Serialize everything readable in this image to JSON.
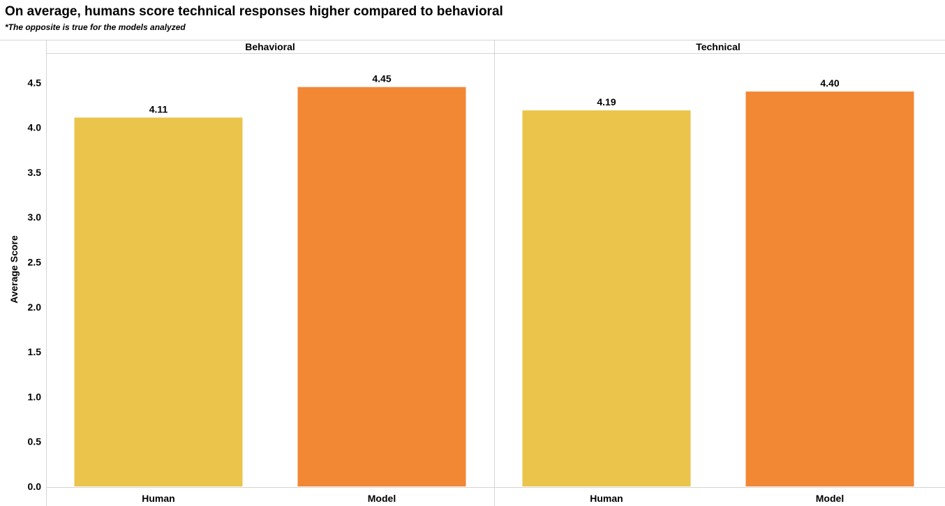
{
  "header": {
    "title": "On average, humans score technical responses higher compared to behavioral",
    "subtitle": "*The opposite is true for the models analyzed"
  },
  "chart_data": {
    "type": "bar",
    "ylabel": "Average Score",
    "ylim": [
      0,
      4.75
    ],
    "yticks": [
      "0.0",
      "0.5",
      "1.0",
      "1.5",
      "2.0",
      "2.5",
      "3.0",
      "3.5",
      "4.0",
      "4.5"
    ],
    "panels": [
      {
        "name": "Behavioral",
        "categories": [
          "Human",
          "Model"
        ],
        "values": [
          4.11,
          4.45
        ],
        "labels": [
          "4.11",
          "4.45"
        ]
      },
      {
        "name": "Technical",
        "categories": [
          "Human",
          "Model"
        ],
        "values": [
          4.19,
          4.4
        ],
        "labels": [
          "4.19",
          "4.40"
        ]
      }
    ],
    "colors": {
      "Human": "#ebc44b",
      "Model": "#f28734"
    },
    "grid": false,
    "legend": "none"
  }
}
